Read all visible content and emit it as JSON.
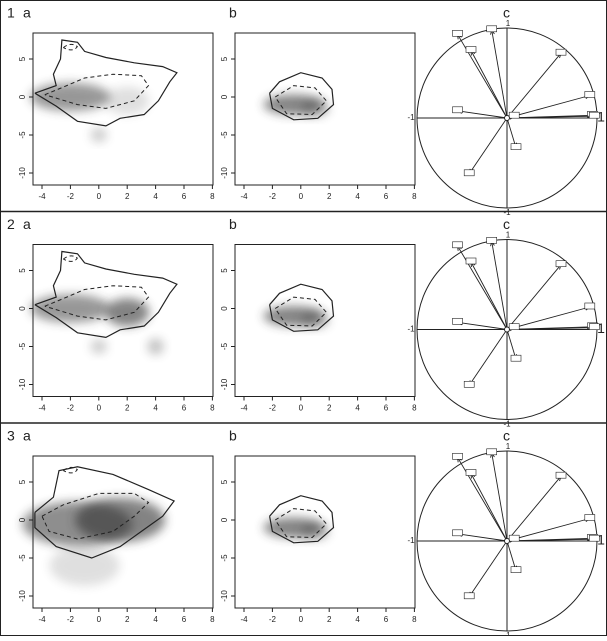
{
  "rows": [
    {
      "number": "1",
      "panels": [
        "a",
        "b",
        "c"
      ]
    },
    {
      "number": "2",
      "panels": [
        "a",
        "b",
        "c"
      ]
    },
    {
      "number": "3",
      "panels": [
        "a",
        "b",
        "c"
      ]
    }
  ],
  "axes": {
    "xticks": [
      -4,
      -2,
      0,
      2,
      4,
      6,
      8
    ],
    "yticks": [
      5,
      0,
      -5,
      -10
    ]
  },
  "circle": {
    "top": "1",
    "left": "-1",
    "right": "1",
    "bottom": "-1"
  }
}
